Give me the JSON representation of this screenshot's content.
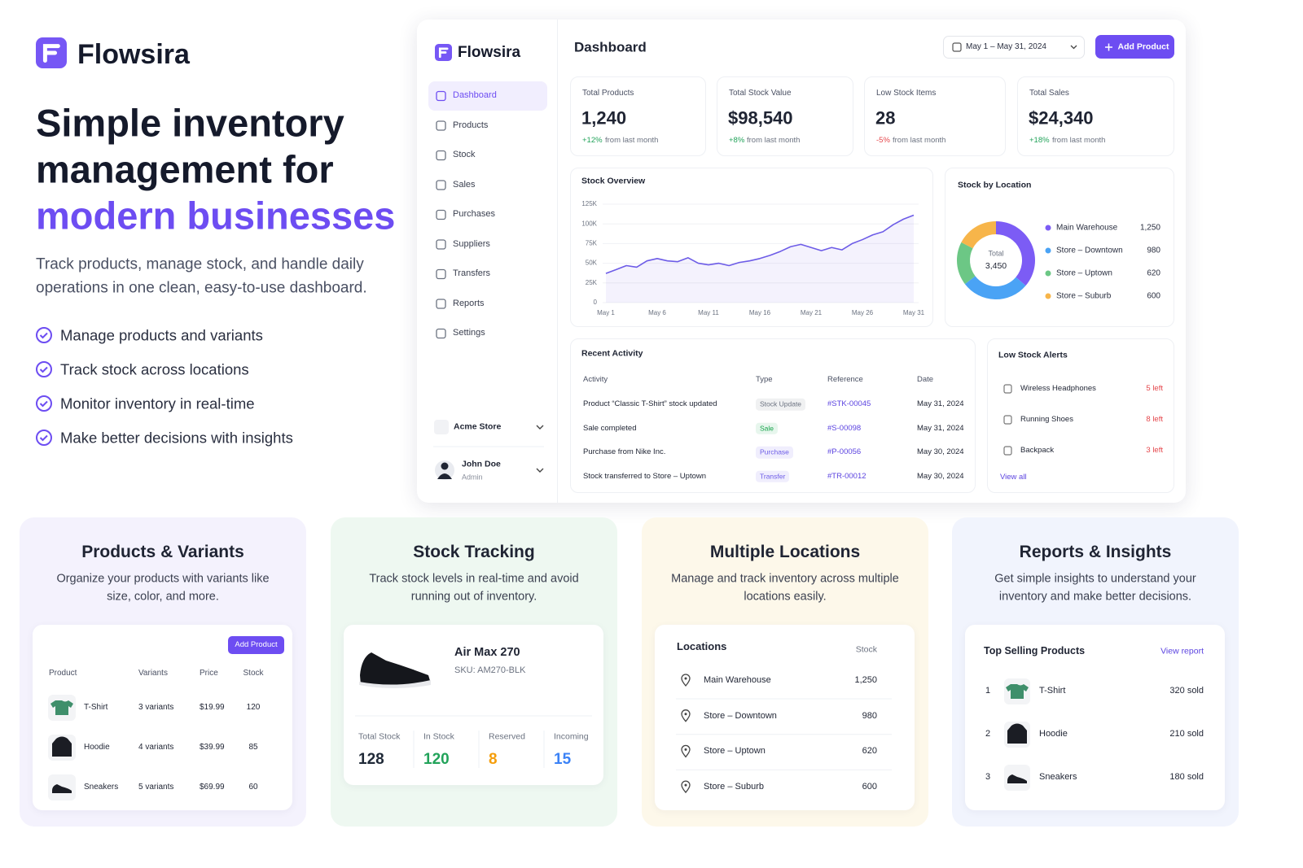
{
  "hero": {
    "brand": "Flowsira",
    "headline": [
      "Simple inventory",
      "management for"
    ],
    "headline_accent": "modern businesses",
    "subtitle": "Track products, manage stock, and handle daily operations in one clean, easy-to-use dashboard.",
    "features": [
      "Manage products and variants",
      "Track stock across locations",
      "Monitor inventory in real-time",
      "Make better decisions with insights"
    ]
  },
  "dashboard": {
    "brand": "Flowsira",
    "nav": [
      "Dashboard",
      "Products",
      "Stock",
      "Sales",
      "Purchases",
      "Suppliers",
      "Transfers",
      "Reports",
      "Settings"
    ],
    "store": "Acme Store",
    "user_name": "John Doe",
    "user_role": "Admin",
    "title": "Dashboard",
    "date_range": "May 1 – May 31, 2024",
    "add_button": "Add Product",
    "kpis": [
      {
        "label": "Total Products",
        "value": "1,240",
        "change": "+12%",
        "note": "from last month",
        "color": "#22a35a"
      },
      {
        "label": "Total Stock Value",
        "value": "$98,540",
        "change": "+8%",
        "note": "from last month",
        "color": "#22a35a"
      },
      {
        "label": "Low Stock Items",
        "value": "28",
        "change": "-5%",
        "note": "from last month",
        "color": "#e5484d"
      },
      {
        "label": "Total Sales",
        "value": "$24,340",
        "change": "+18%",
        "note": "from last month",
        "color": "#22a35a"
      }
    ],
    "recent_activity": {
      "title": "Recent Activity",
      "columns": [
        "Activity",
        "Type",
        "Reference",
        "Date"
      ],
      "rows": [
        {
          "activity": "Product “Classic T-Shirt” stock updated",
          "type": "Stock Update",
          "reference": "#STK-00045",
          "date": "May 31, 2024",
          "color": "#6b7280"
        },
        {
          "activity": "Sale completed",
          "type": "Sale",
          "reference": "#S-00098",
          "date": "May 31, 2024",
          "color": "#16a34a"
        },
        {
          "activity": "Purchase from Nike Inc.",
          "type": "Purchase",
          "reference": "#P-00056",
          "date": "May 30, 2024",
          "color": "#6d5ce7"
        },
        {
          "activity": "Stock transferred to Store – Uptown",
          "type": "Transfer",
          "reference": "#TR-00012",
          "date": "May 30, 2024",
          "color": "#6d5ce7"
        }
      ]
    },
    "low_stock": {
      "title": "Low Stock Alerts",
      "items": [
        {
          "name": "Wireless Headphones",
          "left": "5 left"
        },
        {
          "name": "Running Shoes",
          "left": "8 left"
        },
        {
          "name": "Backpack",
          "left": "3 left"
        }
      ],
      "link": "View all"
    }
  },
  "chart_data": [
    {
      "type": "line",
      "title": "Stock Overview",
      "categories": [
        "May 1",
        null,
        null,
        null,
        null,
        "May 6",
        null,
        null,
        null,
        null,
        "May 11",
        null,
        null,
        null,
        null,
        "May 16",
        null,
        null,
        null,
        null,
        "May 21",
        null,
        null,
        null,
        null,
        "May 26",
        null,
        null,
        null,
        null,
        "May 31"
      ],
      "values": [
        37000,
        42000,
        47000,
        45000,
        53000,
        56000,
        53000,
        52000,
        57000,
        50000,
        48000,
        50000,
        47000,
        51000,
        53000,
        56000,
        60000,
        65000,
        71000,
        74000,
        70000,
        66000,
        70000,
        67000,
        75000,
        80000,
        86000,
        90000,
        99000,
        106000,
        111000
      ],
      "color": "#6d5ce7",
      "ylim": [
        0,
        125000
      ],
      "yticks": [
        0,
        {
          "value": 25000,
          "label": "25K"
        },
        {
          "value": 50000,
          "label": "50K"
        },
        {
          "value": 75000,
          "label": "75K"
        },
        {
          "value": 100000,
          "label": "100K"
        },
        {
          "value": 125000,
          "label": "125K"
        }
      ],
      "grid": true
    },
    {
      "type": "pie",
      "title": "Stock by Location",
      "categories": [
        "Main Warehouse",
        "Store – Downtown",
        "Store – Uptown",
        "Store – Suburb"
      ],
      "values": [
        1250,
        980,
        620,
        600
      ],
      "value_labels": [
        "1,250",
        "980",
        "620",
        "600"
      ],
      "colors": [
        "#7c5cf5",
        "#4aa3f5",
        "#6cc785",
        "#f7b54a"
      ],
      "donut": true,
      "center_label": "Total",
      "center_value": "3,450"
    }
  ],
  "cards": [
    {
      "title": "Products & Variants",
      "description": "Organize your products with variants like size, color, and more.",
      "button": "Add Product",
      "columns": [
        "Product",
        "Variants",
        "Price",
        "Stock"
      ],
      "rows": [
        [
          "T-Shirt",
          "3 variants",
          "$19.99",
          "120"
        ],
        [
          "Hoodie",
          "4 variants",
          "$39.99",
          "85"
        ],
        [
          "Sneakers",
          "5 variants",
          "$69.99",
          "60"
        ]
      ]
    },
    {
      "title": "Stock Tracking",
      "description": "Track stock levels in real-time and avoid running out of inventory.",
      "product": "Air Max 270",
      "sku": "SKU: AM270-BLK",
      "stats": [
        {
          "label": "Total Stock",
          "value": "128",
          "color": "#1f2937"
        },
        {
          "label": "In Stock",
          "value": "120",
          "color": "#22a35a"
        },
        {
          "label": "Reserved",
          "value": "8",
          "color": "#f59e0b"
        },
        {
          "label": "Incoming",
          "value": "15",
          "color": "#3b82f6"
        }
      ]
    },
    {
      "title": "Multiple Locations",
      "description": "Manage and track inventory across multiple locations easily.",
      "columns": [
        "Locations",
        "Stock"
      ],
      "rows": [
        [
          "Main Warehouse",
          "1,250"
        ],
        [
          "Store – Downtown",
          "980"
        ],
        [
          "Store – Uptown",
          "620"
        ],
        [
          "Store – Suburb",
          "600"
        ]
      ]
    },
    {
      "title": "Reports & Insights",
      "description": "Get simple insights to understand your inventory and make better decisions.",
      "heading": "Top Selling Products",
      "link": "View report",
      "rows": [
        [
          "1",
          "T-Shirt",
          "320 sold"
        ],
        [
          "2",
          "Hoodie",
          "210 sold"
        ],
        [
          "3",
          "Sneakers",
          "180 sold"
        ]
      ]
    }
  ]
}
